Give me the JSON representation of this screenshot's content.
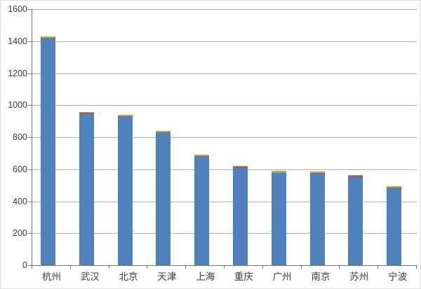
{
  "window": {
    "background": "#ffffff",
    "border_color": "#d9d9d9"
  },
  "chart_data": {
    "type": "bar",
    "stacked": true,
    "title": "",
    "xlabel": "",
    "ylabel": "",
    "legend": "none",
    "grid": true,
    "categories": [
      "杭州",
      "武汉",
      "北京",
      "天津",
      "上海",
      "重庆",
      "广州",
      "南京",
      "苏州",
      "宁波"
    ],
    "series": [
      {
        "name": "series-1-blue",
        "color": "#4f81bd",
        "values": [
          1417,
          944,
          926,
          828,
          678,
          609,
          576,
          574,
          551,
          483
        ]
      },
      {
        "name": "series-2-red",
        "color": "#c0504d",
        "values": [
          5,
          7,
          6,
          2,
          2,
          9,
          2,
          5,
          8,
          1
        ]
      },
      {
        "name": "series-3-green",
        "color": "#9bbb59",
        "values": [
          8,
          4,
          8,
          10,
          10,
          2,
          12,
          9,
          1,
          12
        ]
      }
    ],
    "totals": [
      1430,
      955,
      940,
      840,
      690,
      620,
      590,
      588,
      560,
      496
    ],
    "y_axis": {
      "min": 0,
      "max": 1600,
      "step": 200,
      "tick_labels": [
        "0",
        "200",
        "400",
        "600",
        "800",
        "1000",
        "1200",
        "1400",
        "1600"
      ]
    },
    "style": {
      "grid_color": "#b0b0b0",
      "axis_color": "#747474",
      "text_color": "#3b3b3b",
      "plot_background": "#ffffff"
    }
  }
}
